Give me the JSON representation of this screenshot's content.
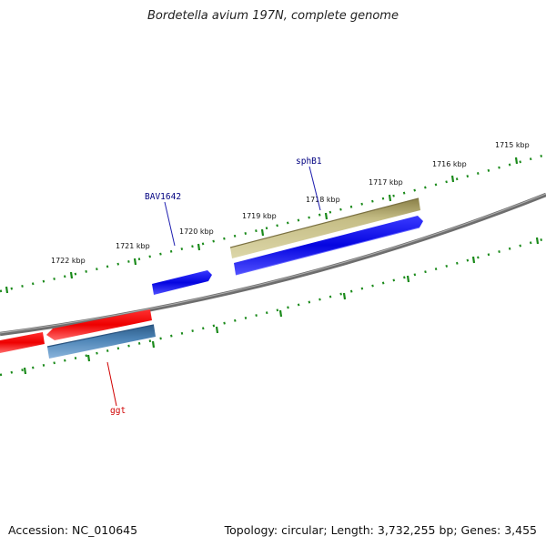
{
  "title": "Bordetella avium 197N, complete genome",
  "footer": {
    "accession": "Accession: NC_010645",
    "summary": "Topology: circular; Length: 3,732,255 bp; Genes: 3,455"
  },
  "scale": {
    "unit": "kbp",
    "ticks": [
      {
        "label": "1715 kbp"
      },
      {
        "label": "1716 kbp"
      },
      {
        "label": "1717 kbp"
      },
      {
        "label": "1718 kbp"
      },
      {
        "label": "1719 kbp"
      },
      {
        "label": "1720 kbp"
      },
      {
        "label": "1721 kbp"
      },
      {
        "label": "1722 kbp"
      }
    ]
  },
  "genes": [
    {
      "name": "sphB1",
      "color": "#000080",
      "feature_color": "#c8c088"
    },
    {
      "name": "BAV1642",
      "color": "#000080",
      "feature_color": "#0000e0"
    },
    {
      "name": "ggt",
      "color": "#d00000",
      "feature_color": "#ee0000",
      "cds_color": "#4a80b0"
    }
  ],
  "colors": {
    "backbone": "#7a7a7a",
    "tick": "#1a8a1a",
    "forward_cds": "#0a0ae8",
    "reverse_cds": "#ee1111",
    "feature_olive": "#c9c189",
    "feature_steel": "#4a82b4"
  }
}
